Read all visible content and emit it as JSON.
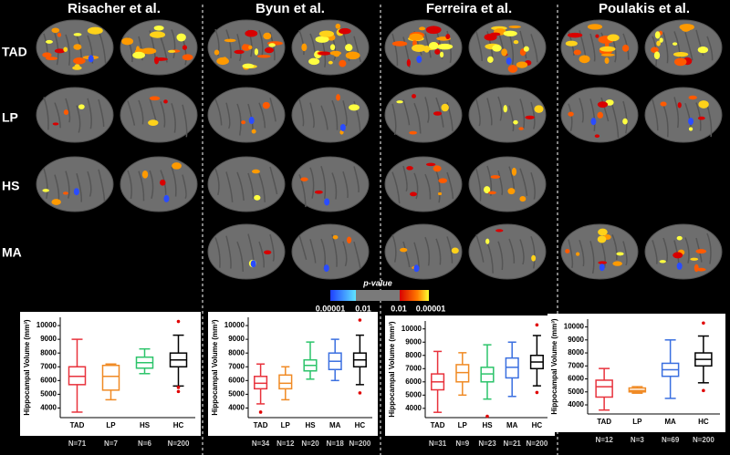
{
  "figure": {
    "columns": [
      "Risacher et al.",
      "Byun et al.",
      "Ferreira et al.",
      "Poulakis et al."
    ],
    "rows": [
      "TAD",
      "LP",
      "HS",
      "MA"
    ],
    "colorbar": {
      "title": "p-value",
      "labels": [
        "0.00001",
        "0.01",
        "0.01",
        "0.00001"
      ]
    }
  },
  "chart_data": [
    {
      "type": "box",
      "ylabel": "Hippocampal Volume (mm³)",
      "ylim": [
        3300,
        10600
      ],
      "yticks": [
        4000,
        5000,
        6000,
        7000,
        8000,
        9000,
        10000
      ],
      "categories": [
        "TAD",
        "LP",
        "HS",
        "HC"
      ],
      "n_labels": [
        "N=71",
        "N=7",
        "N=6",
        "N=200"
      ],
      "boxes": [
        {
          "color": "#e8323c",
          "whisker_low": 3700,
          "q1": 5700,
          "median": 6300,
          "q3": 7000,
          "whisker_high": 9000,
          "outliers": []
        },
        {
          "color": "#f08a24",
          "whisker_low": 4600,
          "q1": 5300,
          "median": 6300,
          "q3": 7100,
          "whisker_high": 7200,
          "outliers": []
        },
        {
          "color": "#2cc46a",
          "whisker_low": 6500,
          "q1": 6900,
          "median": 7300,
          "q3": 7700,
          "whisker_high": 8300,
          "outliers": []
        },
        {
          "color": "#000000",
          "whisker_low": 5600,
          "q1": 7000,
          "median": 7500,
          "q3": 8000,
          "whisker_high": 9300,
          "outliers": [
            10300,
            5500,
            5200
          ]
        }
      ]
    },
    {
      "type": "box",
      "ylabel": "Hippocampal Volume (mm³)",
      "ylim": [
        3300,
        10600
      ],
      "yticks": [
        4000,
        5000,
        6000,
        7000,
        8000,
        9000,
        10000
      ],
      "categories": [
        "TAD",
        "LP",
        "HS",
        "MA",
        "HC"
      ],
      "n_labels": [
        "N=34",
        "N=12",
        "N=20",
        "N=18",
        "N=200"
      ],
      "boxes": [
        {
          "color": "#e8323c",
          "whisker_low": 4300,
          "q1": 5400,
          "median": 5800,
          "q3": 6300,
          "whisker_high": 7200,
          "outliers": [
            3700
          ]
        },
        {
          "color": "#f08a24",
          "whisker_low": 4600,
          "q1": 5400,
          "median": 5800,
          "q3": 6400,
          "whisker_high": 7000,
          "outliers": []
        },
        {
          "color": "#2cc46a",
          "whisker_low": 6100,
          "q1": 6700,
          "median": 7100,
          "q3": 7500,
          "whisker_high": 8800,
          "outliers": []
        },
        {
          "color": "#3a6fe0",
          "whisker_low": 6000,
          "q1": 6800,
          "median": 7400,
          "q3": 8000,
          "whisker_high": 9000,
          "outliers": []
        },
        {
          "color": "#000000",
          "whisker_low": 5700,
          "q1": 7000,
          "median": 7500,
          "q3": 8000,
          "whisker_high": 9300,
          "outliers": [
            10400,
            5100
          ]
        }
      ]
    },
    {
      "type": "box",
      "ylabel": "Hippocampal Volume (mm³)",
      "ylim": [
        3300,
        10600
      ],
      "yticks": [
        4000,
        5000,
        6000,
        7000,
        8000,
        9000,
        10000
      ],
      "categories": [
        "TAD",
        "LP",
        "HS",
        "MA",
        "HC"
      ],
      "n_labels": [
        "N=31",
        "N=9",
        "N=23",
        "N=21",
        "N=200"
      ],
      "boxes": [
        {
          "color": "#e8323c",
          "whisker_low": 3700,
          "q1": 5400,
          "median": 6000,
          "q3": 6600,
          "whisker_high": 8300,
          "outliers": []
        },
        {
          "color": "#f08a24",
          "whisker_low": 5000,
          "q1": 6000,
          "median": 6700,
          "q3": 7300,
          "whisker_high": 8200,
          "outliers": []
        },
        {
          "color": "#2cc46a",
          "whisker_low": 4700,
          "q1": 6000,
          "median": 6600,
          "q3": 7100,
          "whisker_high": 8800,
          "outliers": [
            3400
          ]
        },
        {
          "color": "#3a6fe0",
          "whisker_low": 4900,
          "q1": 6300,
          "median": 7100,
          "q3": 7800,
          "whisker_high": 9000,
          "outliers": []
        },
        {
          "color": "#000000",
          "whisker_low": 5700,
          "q1": 7000,
          "median": 7500,
          "q3": 8000,
          "whisker_high": 9500,
          "outliers": [
            10300,
            5200
          ]
        }
      ]
    },
    {
      "type": "box",
      "ylabel": "Hippocampal Volume (mm³)",
      "ylim": [
        3300,
        10600
      ],
      "yticks": [
        4000,
        5000,
        6000,
        7000,
        8000,
        9000,
        10000
      ],
      "categories": [
        "TAD",
        "LP",
        "MA",
        "HC"
      ],
      "n_labels": [
        "N=12",
        "N=3",
        "N=69",
        "N=200"
      ],
      "boxes": [
        {
          "color": "#e8323c",
          "whisker_low": 3600,
          "q1": 4600,
          "median": 5400,
          "q3": 5900,
          "whisker_high": 6800,
          "outliers": []
        },
        {
          "color": "#f08a24",
          "whisker_low": 4900,
          "q1": 5000,
          "median": 5100,
          "q3": 5300,
          "whisker_high": 5400,
          "outliers": []
        },
        {
          "color": "#3a6fe0",
          "whisker_low": 4500,
          "q1": 6200,
          "median": 6700,
          "q3": 7200,
          "whisker_high": 9000,
          "outliers": []
        },
        {
          "color": "#000000",
          "whisker_low": 5700,
          "q1": 7000,
          "median": 7500,
          "q3": 8000,
          "whisker_high": 9300,
          "outliers": [
            10300,
            5100
          ]
        }
      ]
    }
  ]
}
